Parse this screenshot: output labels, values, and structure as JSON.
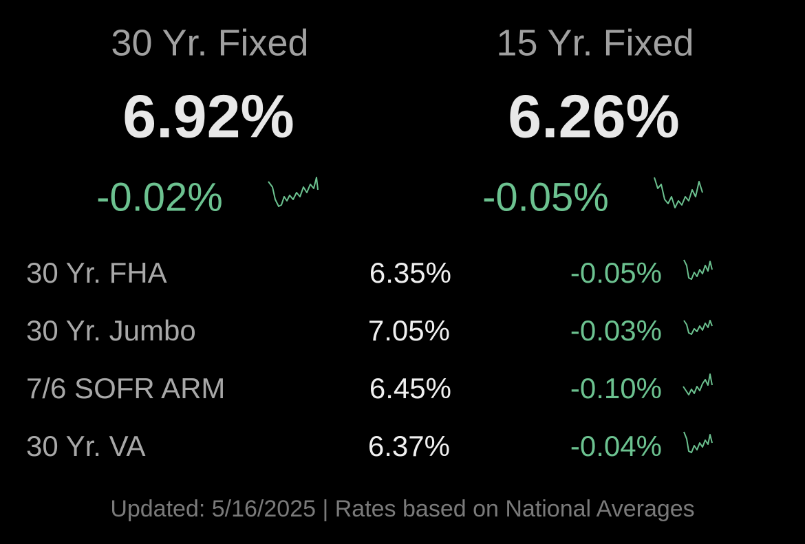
{
  "featured": [
    {
      "label": "30 Yr. Fixed",
      "rate": "6.92%",
      "change": "-0.02%"
    },
    {
      "label": "15 Yr. Fixed",
      "rate": "6.26%",
      "change": "-0.05%"
    }
  ],
  "rows": [
    {
      "label": "30 Yr. FHA",
      "rate": "6.35%",
      "change": "-0.05%"
    },
    {
      "label": "30 Yr. Jumbo",
      "rate": "7.05%",
      "change": "-0.03%"
    },
    {
      "label": "7/6 SOFR ARM",
      "rate": "6.45%",
      "change": "-0.10%"
    },
    {
      "label": "30 Yr. VA",
      "rate": "6.37%",
      "change": "-0.04%"
    }
  ],
  "footer": "Updated: 5/16/2025 | Rates based on National Averages"
}
